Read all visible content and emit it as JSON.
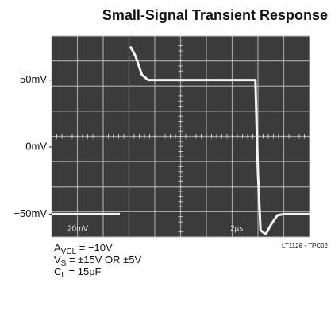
{
  "chart_data": {
    "type": "line",
    "title": "Small-Signal Transient Response",
    "x": [
      0,
      5.3,
      5.6,
      6.1,
      6.5,
      7.0,
      7.5,
      8.0,
      15.8,
      16.0,
      16.2,
      16.6,
      17.0,
      17.5,
      18.0,
      20
    ],
    "series": [
      {
        "color": "#f4f4f4",
        "values": [
          -50,
          -50,
          null,
          75,
          68,
          54,
          50,
          50,
          50,
          -20,
          -62,
          -65,
          -58,
          -51,
          -50,
          -50
        ]
      }
    ],
    "xlim": [
      0,
      20
    ],
    "ylim": [
      -67,
      83
    ],
    "yticks": [
      {
        "value": 50,
        "label": "50mV"
      },
      {
        "value": 0,
        "label": "0mV"
      },
      {
        "value": -50,
        "label": "−50mV"
      }
    ],
    "annotations": [
      "20mV",
      "2µs"
    ],
    "figure_id": "LT1126 • TPC02",
    "notes": [
      {
        "main": "A",
        "sub": "VCL",
        "rest": " = −10V"
      },
      {
        "main": "V",
        "sub": "S",
        "rest": " = ±15V OR ±5V"
      },
      {
        "main": "C",
        "sub": "L",
        "rest": " = 15pF"
      }
    ]
  }
}
